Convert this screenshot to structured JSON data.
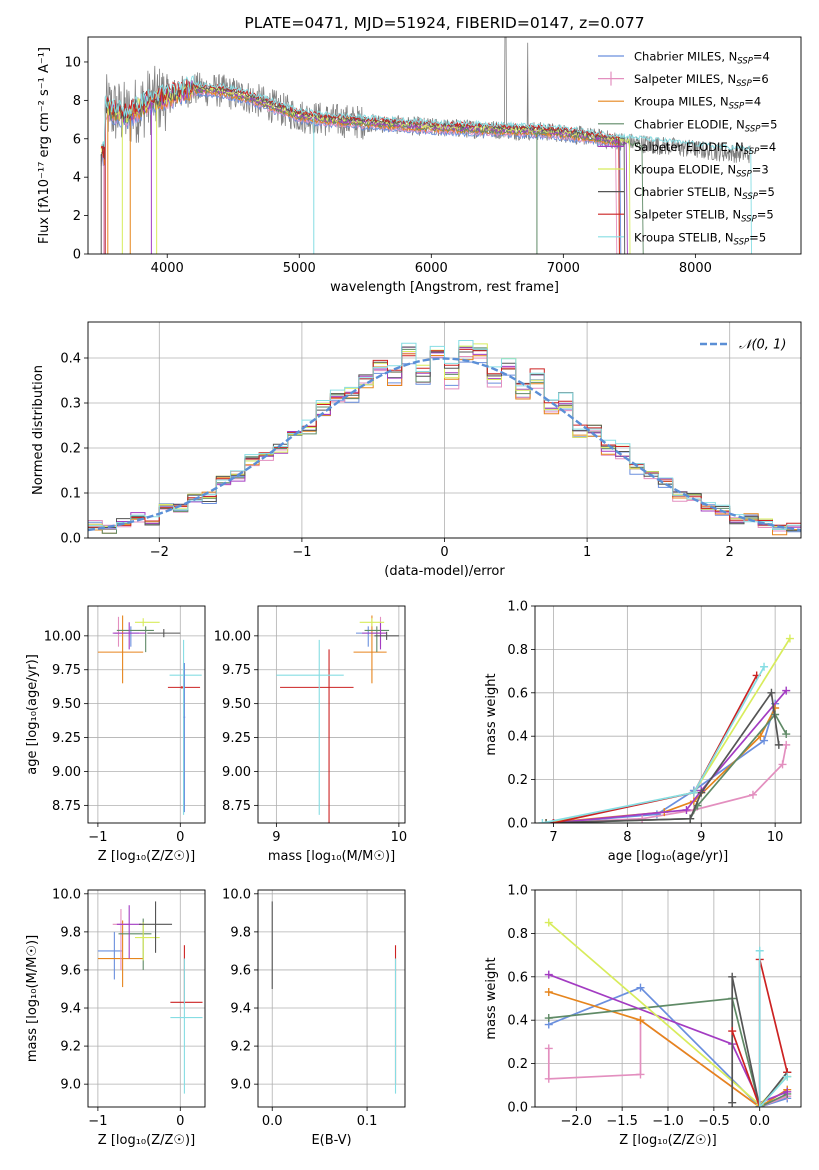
{
  "colors": {
    "Chabrier MILES": "#6a8fde",
    "Salpeter MILES": "#e38fbf",
    "Kroupa MILES": "#e6851d",
    "Chabrier ELODIE": "#5f8a66",
    "Salpeter ELODIE": "#a33cc2",
    "Kroupa ELODIE": "#d8ec5c",
    "Chabrier STELIB": "#555555",
    "Salpeter STELIB": "#cc2222",
    "Kroupa STELIB": "#86dde3",
    "data": "#808080",
    "normal": "#5b8fd6",
    "grid": "#b0b0b0"
  },
  "chart_data": [
    {
      "id": "spectrum",
      "type": "line",
      "title": "PLATE=0471, MJD=51924, FIBERID=0147, z=0.077",
      "xlabel": "wavelength [Angstrom, rest frame]",
      "ylabel": "Flux [fλ10⁻¹⁷ erg cm⁻² s⁻¹ A⁻¹]",
      "xlim": [
        3400,
        8800
      ],
      "ylim": [
        0,
        11.3
      ],
      "xticks": [
        4000,
        5000,
        6000,
        7000,
        8000
      ],
      "yticks": [
        0,
        2,
        4,
        6,
        8,
        10
      ],
      "grid": false,
      "legend_position": "top-right",
      "data_trend": {
        "x": [
          3530,
          3700,
          3850,
          4000,
          4200,
          4400,
          4600,
          4800,
          5000,
          5200,
          5400,
          5600,
          5800,
          6000,
          6200,
          6400,
          6600,
          6800,
          7000,
          7200,
          7400,
          7600,
          7800,
          8000,
          8200,
          8400
        ],
        "y": [
          7.6,
          7.2,
          7.9,
          8.2,
          8.6,
          8.5,
          8.2,
          7.7,
          7.2,
          7.0,
          6.9,
          6.8,
          6.7,
          6.6,
          6.55,
          6.5,
          6.45,
          6.4,
          6.3,
          6.1,
          5.9,
          5.75,
          5.6,
          5.45,
          5.3,
          5.2
        ]
      },
      "series": [
        {
          "name": "Chabrier MILES",
          "nssp": "4"
        },
        {
          "name": "Salpeter MILES",
          "nssp": "6"
        },
        {
          "name": "Kroupa MILES",
          "nssp": "4"
        },
        {
          "name": "Chabrier ELODIE",
          "nssp": "5"
        },
        {
          "name": "Salpeter ELODIE",
          "nssp": "4"
        },
        {
          "name": "Kroupa ELODIE",
          "nssp": "3"
        },
        {
          "name": "Chabrier STELIB",
          "nssp": "5"
        },
        {
          "name": "Salpeter STELIB",
          "nssp": "5"
        },
        {
          "name": "Kroupa STELIB",
          "nssp": "5"
        }
      ]
    },
    {
      "id": "residuals",
      "type": "histogram",
      "xlabel": "(data-model)/error",
      "ylabel": "Normed distribution",
      "xlim": [
        -2.5,
        2.5
      ],
      "ylim": [
        0,
        0.48
      ],
      "xticks": [
        -2,
        -1,
        0,
        1,
        2
      ],
      "yticks": [
        0.0,
        0.1,
        0.2,
        0.3,
        0.4
      ],
      "grid": true,
      "legend_position": "top-right",
      "legend_label": "𝒩(0, 1)",
      "bin_width": 0.1,
      "bin_start": -2.5,
      "noise": [
        0.01,
        -0.005,
        0.004,
        0.008,
        -0.01,
        0.012,
        -0.006,
        0.003,
        -0.012,
        0.009,
        -0.004,
        0.011,
        0.006,
        -0.009,
        0.002,
        -0.011,
        0.007,
        0.01,
        -0.003,
        0.005,
        0.018,
        -0.02,
        0.025,
        -0.03,
        0.015,
        -0.035,
        0.022,
        0.03,
        -0.025,
        0.02,
        -0.015,
        0.035,
        -0.01,
        0.028,
        -0.02,
        0.012,
        -0.008,
        0.01,
        -0.006,
        0.004,
        0.006,
        -0.01,
        0.008,
        -0.004,
        0.003,
        -0.008,
        0.005,
        0.002,
        -0.006,
        0.004
      ]
    },
    {
      "id": "age_vs_Z",
      "type": "errorbar",
      "xlabel": "Z [log₁₀(Z/Z☉)]",
      "ylabel": "age  [log₁₀(age/yr)]",
      "xlim": [
        -1.12,
        0.3
      ],
      "ylim": [
        8.62,
        10.22
      ],
      "xticks": [
        -1,
        0
      ],
      "yticks": [
        8.75,
        9.0,
        9.25,
        9.5,
        9.75,
        10.0
      ],
      "grid": true,
      "points": [
        {
          "series": "Chabrier MILES",
          "x": -0.6,
          "xerr": [
            0.2,
            0.1
          ],
          "y": 10.02,
          "yerr": [
            0.1,
            0.05
          ]
        },
        {
          "series": "Kroupa MILES",
          "x": -0.7,
          "xerr": [
            0.3,
            0.25
          ],
          "y": 9.88,
          "yerr": [
            0.23,
            0.27
          ]
        },
        {
          "series": "Salpeter MILES",
          "x": -0.75,
          "xerr": [
            0.05,
            0.05
          ],
          "y": 10.02,
          "yerr": [
            0.1,
            0.12
          ]
        },
        {
          "series": "Chabrier ELODIE",
          "x": -0.42,
          "xerr": [
            0.35,
            0.1
          ],
          "y": 10.04,
          "yerr": [
            0.16,
            0.03
          ]
        },
        {
          "series": "Salpeter ELODIE",
          "x": -0.62,
          "xerr": [
            0.2,
            0.2
          ],
          "y": 10.02,
          "yerr": [
            0.12,
            0.08
          ]
        },
        {
          "series": "Kroupa ELODIE",
          "x": -0.45,
          "xerr": [
            0.1,
            0.2
          ],
          "y": 10.1,
          "yerr": [
            0.03,
            0.03
          ]
        },
        {
          "series": "Chabrier STELIB",
          "x": -0.2,
          "xerr": [
            0.2,
            0.2
          ],
          "y": 10.02,
          "yerr": [
            0.03,
            0.03
          ]
        },
        {
          "series": "Salpeter STELIB",
          "x": 0.02,
          "xerr": [
            0.17,
            0.22
          ],
          "y": 9.62,
          "yerr": [
            0.01,
            0.01
          ]
        },
        {
          "series": "Kroupa STELIB",
          "x": 0.04,
          "xerr": [
            0.17,
            0.22
          ],
          "y": 9.71,
          "yerr": [
            1.03,
            0.26
          ]
        },
        {
          "series": "Chabrier MILES",
          "x": 0.05,
          "xerr": [
            0.01,
            0.01
          ],
          "y": 9.4,
          "yerr": [
            0.7,
            0.4
          ]
        }
      ]
    },
    {
      "id": "age_vs_mass",
      "type": "errorbar",
      "xlabel": "mass [log₁₀(M/M☉)]",
      "ylabel": "",
      "xlim": [
        8.85,
        10.05
      ],
      "ylim": [
        8.62,
        10.22
      ],
      "xticks": [
        9,
        10
      ],
      "yticks": [
        8.75,
        9.0,
        9.25,
        9.5,
        9.75,
        10.0
      ],
      "grid": true,
      "points": [
        {
          "series": "Chabrier MILES",
          "x": 9.75,
          "xerr": [
            0.1,
            0.1
          ],
          "y": 10.02,
          "yerr": [
            0.1,
            0.05
          ]
        },
        {
          "series": "Kroupa MILES",
          "x": 9.78,
          "xerr": [
            0.15,
            0.12
          ],
          "y": 9.88,
          "yerr": [
            0.23,
            0.27
          ]
        },
        {
          "series": "Salpeter MILES",
          "x": 9.85,
          "xerr": [
            0.05,
            0.05
          ],
          "y": 10.02,
          "yerr": [
            0.1,
            0.12
          ]
        },
        {
          "series": "Chabrier ELODIE",
          "x": 9.82,
          "xerr": [
            0.1,
            0.1
          ],
          "y": 10.04,
          "yerr": [
            0.16,
            0.03
          ]
        },
        {
          "series": "Salpeter ELODIE",
          "x": 9.85,
          "xerr": [
            0.15,
            0.05
          ],
          "y": 10.02,
          "yerr": [
            0.12,
            0.08
          ]
        },
        {
          "series": "Kroupa ELODIE",
          "x": 9.78,
          "xerr": [
            0.1,
            0.1
          ],
          "y": 10.1,
          "yerr": [
            0.03,
            0.03
          ]
        },
        {
          "series": "Chabrier STELIB",
          "x": 9.9,
          "xerr": [
            0.1,
            0.1
          ],
          "y": 10.0,
          "yerr": [
            0.03,
            0.03
          ]
        },
        {
          "series": "Salpeter STELIB",
          "x": 9.43,
          "xerr": [
            0.4,
            0.2
          ],
          "y": 9.62,
          "yerr": [
            1.18,
            0.28
          ]
        },
        {
          "series": "Kroupa STELIB",
          "x": 9.35,
          "xerr": [
            0.35,
            0.2
          ],
          "y": 9.71,
          "yerr": [
            1.03,
            0.26
          ]
        }
      ]
    },
    {
      "id": "weight_vs_age",
      "type": "line",
      "xlabel": "age  [log₁₀(age/yr)]",
      "ylabel": "mass weight",
      "xlim": [
        6.75,
        10.35
      ],
      "ylim": [
        0,
        1.0
      ],
      "xticks": [
        7,
        8,
        9,
        10
      ],
      "yticks": [
        0.0,
        0.2,
        0.4,
        0.6,
        0.8,
        1.0
      ],
      "grid": true,
      "series": [
        {
          "name": "Chabrier MILES",
          "x": [
            7.0,
            8.4,
            8.9,
            9.85,
            10.0
          ],
          "y": [
            0.0,
            0.04,
            0.15,
            0.38,
            0.55
          ]
        },
        {
          "name": "Salpeter MILES",
          "x": [
            7.0,
            8.2,
            8.9,
            9.7,
            10.1,
            10.15
          ],
          "y": [
            0.0,
            0.02,
            0.06,
            0.13,
            0.27,
            0.36
          ]
        },
        {
          "name": "Kroupa MILES",
          "x": [
            6.9,
            8.5,
            8.9,
            9.8,
            10.0
          ],
          "y": [
            0.0,
            0.05,
            0.1,
            0.4,
            0.53
          ]
        },
        {
          "name": "Chabrier ELODIE",
          "x": [
            7.0,
            8.85,
            8.95,
            10.0,
            10.15
          ],
          "y": [
            0.0,
            0.02,
            0.08,
            0.5,
            0.41
          ]
        },
        {
          "name": "Salpeter ELODIE",
          "x": [
            7.0,
            8.8,
            9.0,
            10.15
          ],
          "y": [
            0.0,
            0.06,
            0.15,
            0.61
          ]
        },
        {
          "name": "Kroupa ELODIE",
          "x": [
            6.9,
            8.9,
            10.2
          ],
          "y": [
            0.0,
            0.14,
            0.85
          ]
        },
        {
          "name": "Chabrier STELIB",
          "x": [
            6.9,
            8.85,
            9.0,
            9.95,
            10.05
          ],
          "y": [
            0.0,
            0.02,
            0.14,
            0.6,
            0.36
          ]
        },
        {
          "name": "Salpeter STELIB",
          "x": [
            7.0,
            8.9,
            9.75
          ],
          "y": [
            0.0,
            0.14,
            0.68
          ]
        },
        {
          "name": "Kroupa STELIB",
          "x": [
            6.85,
            8.9,
            9.85
          ],
          "y": [
            0.0,
            0.14,
            0.72
          ]
        }
      ]
    },
    {
      "id": "mass_vs_Z",
      "type": "errorbar",
      "xlabel": "Z [log₁₀(Z/Z☉)]",
      "ylabel": "mass [log₁₀(M/M☉)]",
      "xlim": [
        -1.12,
        0.3
      ],
      "ylim": [
        8.88,
        10.02
      ],
      "xticks": [
        -1,
        0
      ],
      "yticks": [
        9.0,
        9.2,
        9.4,
        9.6,
        9.8,
        10.0
      ],
      "grid": true,
      "points": [
        {
          "series": "Chabrier MILES",
          "x": -0.8,
          "xerr": [
            0.2,
            0.1
          ],
          "y": 9.7,
          "yerr": [
            0.15,
            0.1
          ]
        },
        {
          "series": "Kroupa MILES",
          "x": -0.7,
          "xerr": [
            0.3,
            0.25
          ],
          "y": 9.66,
          "yerr": [
            0.15,
            0.2
          ]
        },
        {
          "series": "Salpeter MILES",
          "x": -0.72,
          "xerr": [
            0.1,
            0.1
          ],
          "y": 9.84,
          "yerr": [
            0.24,
            0.08
          ]
        },
        {
          "series": "Chabrier ELODIE",
          "x": -0.45,
          "xerr": [
            0.3,
            0.1
          ],
          "y": 9.79,
          "yerr": [
            0.19,
            0.08
          ]
        },
        {
          "series": "Salpeter ELODIE",
          "x": -0.62,
          "xerr": [
            0.15,
            0.15
          ],
          "y": 9.84,
          "yerr": [
            0.18,
            0.1
          ]
        },
        {
          "series": "Kroupa ELODIE",
          "x": -0.45,
          "xerr": [
            0.1,
            0.2
          ],
          "y": 9.77,
          "yerr": [
            0.12,
            0.08
          ]
        },
        {
          "series": "Chabrier STELIB",
          "x": -0.3,
          "xerr": [
            0.2,
            0.2
          ],
          "y": 9.84,
          "yerr": [
            0.15,
            0.12
          ]
        },
        {
          "series": "Salpeter STELIB",
          "x": 0.05,
          "xerr": [
            0.17,
            0.22
          ],
          "y": 9.43,
          "yerr": [
            0.01,
            0.3
          ]
        },
        {
          "series": "Kroupa STELIB",
          "x": 0.05,
          "xerr": [
            0.17,
            0.22
          ],
          "y": 9.35,
          "yerr": [
            0.4,
            0.31
          ]
        }
      ]
    },
    {
      "id": "mass_vs_ebv",
      "type": "errorbar",
      "xlabel": "E(B-V)",
      "ylabel": "",
      "xlim": [
        -0.015,
        0.14
      ],
      "ylim": [
        8.88,
        10.02
      ],
      "xticks": [
        0.0,
        0.1
      ],
      "yticks": [
        9.0,
        9.2,
        9.4,
        9.6,
        9.8,
        10.0
      ],
      "grid": true,
      "points": [
        {
          "series": "Chabrier STELIB",
          "x": 0.0,
          "xerr": [
            0,
            0
          ],
          "y": 9.75,
          "yerr": [
            0.25,
            0.21
          ]
        },
        {
          "series": "Salpeter STELIB",
          "x": 0.13,
          "xerr": [
            0,
            0
          ],
          "y": 9.6,
          "yerr": [
            0.6,
            0.13
          ]
        },
        {
          "series": "Kroupa STELIB",
          "x": 0.13,
          "xerr": [
            0,
            0
          ],
          "y": 9.35,
          "yerr": [
            0.4,
            0.31
          ]
        }
      ]
    },
    {
      "id": "weight_vs_Z",
      "type": "line",
      "xlabel": "Z [log₁₀(Z/Z☉)]",
      "ylabel": "mass weight",
      "xlim": [
        -2.45,
        0.45
      ],
      "ylim": [
        0,
        1.0
      ],
      "xticks": [
        -2.0,
        -1.5,
        -1.0,
        -0.5,
        0.0
      ],
      "yticks": [
        0.0,
        0.2,
        0.4,
        0.6,
        0.8,
        1.0
      ],
      "grid": true,
      "series": [
        {
          "name": "Chabrier MILES",
          "x": [
            -2.3,
            -1.3,
            0.0,
            0.3
          ],
          "y": [
            0.38,
            0.55,
            0.0,
            0.04
          ]
        },
        {
          "name": "Salpeter MILES",
          "x": [
            -2.3,
            -2.3,
            -1.3,
            -1.3,
            0.0,
            0.3
          ],
          "y": [
            0.27,
            0.13,
            0.15,
            0.4,
            0.0,
            0.05
          ]
        },
        {
          "name": "Kroupa MILES",
          "x": [
            -2.3,
            -1.3,
            0.0,
            0.3
          ],
          "y": [
            0.53,
            0.4,
            0.0,
            0.08
          ]
        },
        {
          "name": "Chabrier ELODIE",
          "x": [
            -2.3,
            -0.3,
            0.0,
            0.3
          ],
          "y": [
            0.41,
            0.5,
            0.0,
            0.06
          ]
        },
        {
          "name": "Salpeter ELODIE",
          "x": [
            -2.3,
            -0.3,
            0.0,
            0.3
          ],
          "y": [
            0.61,
            0.29,
            0.02,
            0.07
          ]
        },
        {
          "name": "Kroupa ELODIE",
          "x": [
            -2.3,
            0.0,
            0.3
          ],
          "y": [
            0.85,
            0.01,
            0.14
          ]
        },
        {
          "name": "Chabrier STELIB",
          "x": [
            -0.3,
            -0.3,
            0.0,
            0.0,
            0.3
          ],
          "y": [
            0.02,
            0.6,
            0.0,
            0.0,
            0.16
          ]
        },
        {
          "name": "Salpeter STELIB",
          "x": [
            -0.3,
            0.0,
            0.0,
            0.3
          ],
          "y": [
            0.35,
            0.0,
            0.68,
            0.16
          ]
        },
        {
          "name": "Kroupa STELIB",
          "x": [
            0.0,
            0.0,
            0.3
          ],
          "y": [
            0.72,
            0.0,
            0.14
          ]
        }
      ]
    }
  ]
}
